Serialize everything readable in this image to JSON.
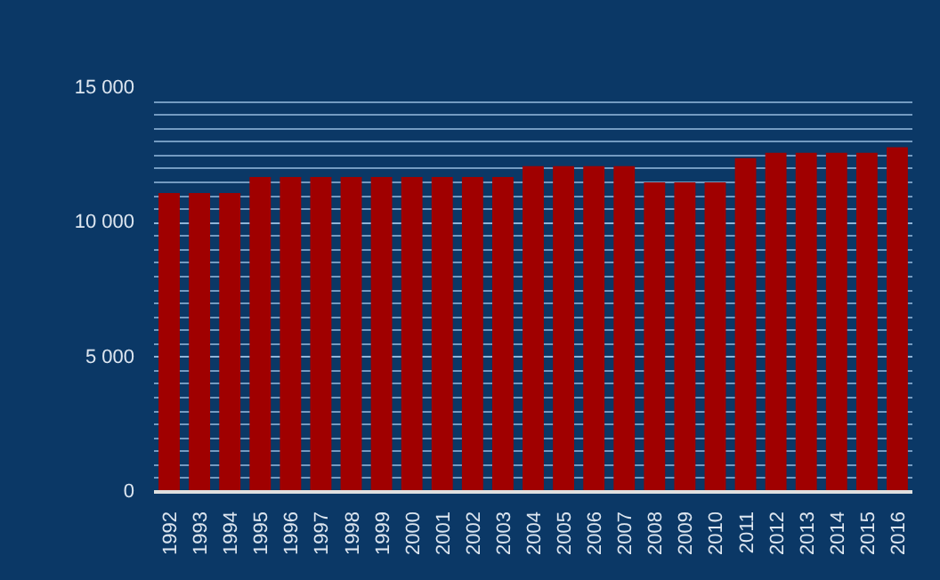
{
  "chart_data": {
    "type": "bar",
    "categories": [
      "1992",
      "1993",
      "1994",
      "1995",
      "1996",
      "1997",
      "1998",
      "1999",
      "2000",
      "2001",
      "2002",
      "2003",
      "2004",
      "2005",
      "2006",
      "2007",
      "2008",
      "2009",
      "2010",
      "2011",
      "2012",
      "2013",
      "2014",
      "2015",
      "2016"
    ],
    "values": [
      11100,
      11100,
      11100,
      11700,
      11700,
      11700,
      11700,
      11700,
      11700,
      11700,
      11700,
      11700,
      12100,
      12100,
      12100,
      12100,
      11500,
      11500,
      11500,
      12400,
      12600,
      12600,
      12600,
      12600,
      12800
    ],
    "color": "#a00000",
    "ylim": [
      0,
      15000
    ],
    "yticks": [
      {
        "value": 0,
        "label": "0"
      },
      {
        "value": 5000,
        "label": "5 000"
      },
      {
        "value": 10000,
        "label": "10 000"
      },
      {
        "value": 15000,
        "label": "15 000"
      }
    ],
    "grid": "y"
  }
}
